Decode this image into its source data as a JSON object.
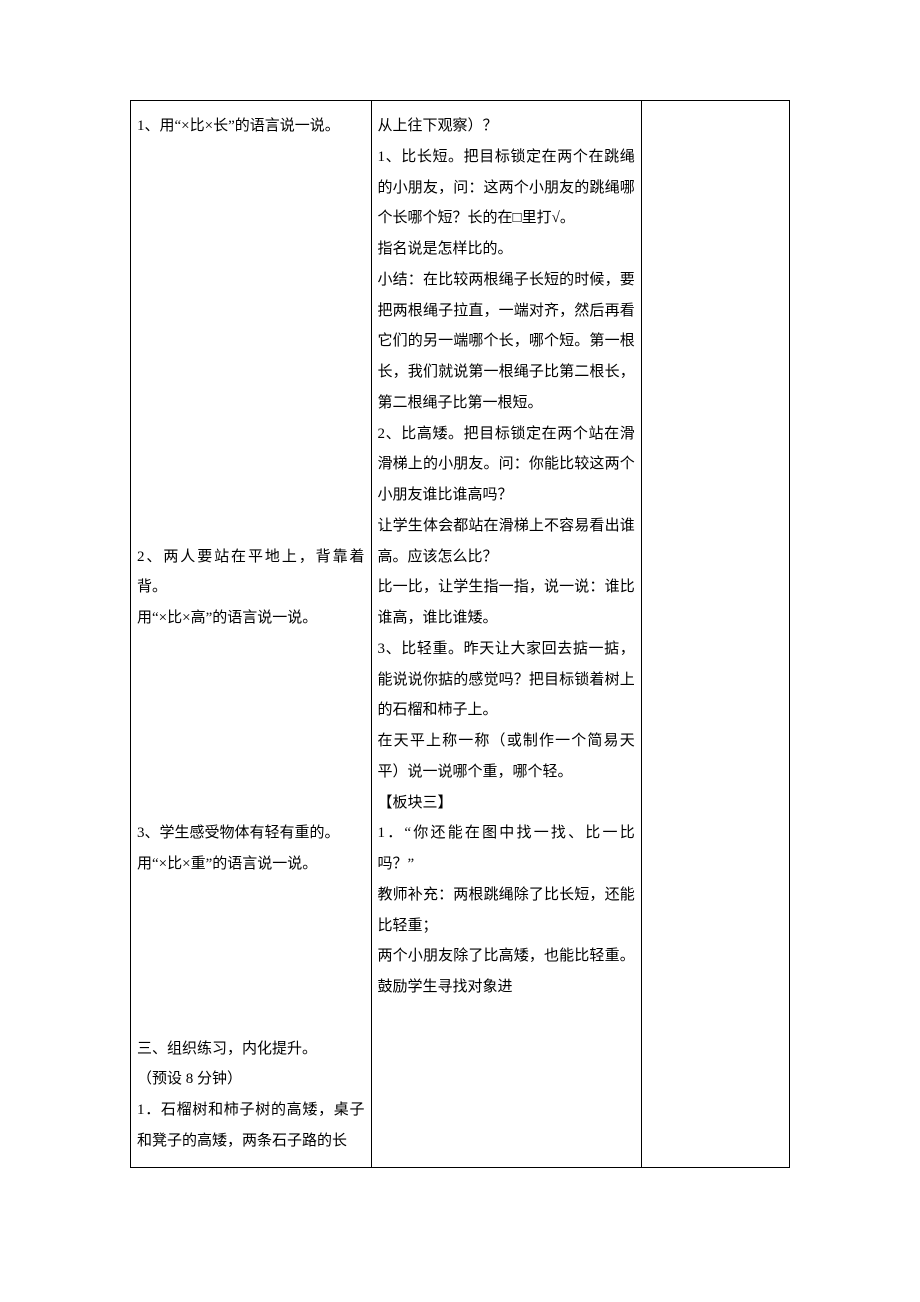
{
  "table": {
    "border_color": "#000000",
    "background_color": "#ffffff",
    "font_family": "SimSun",
    "font_size_pt": 11,
    "line_height": 2.05,
    "columns": [
      {
        "width_pct": 36.5
      },
      {
        "width_pct": 41.0
      },
      {
        "width_pct": 22.5
      }
    ],
    "col1": {
      "p1": "1、用“×比×长”的语言说一说。",
      "p2": "2、两人要站在平地上，背靠着背。",
      "p3": "用“×比×高”的语言说一说。",
      "p4": "3、学生感受物体有轻有重的。",
      "p5": "用“×比×重”的语言说一说。",
      "p6": "三、组织练习，内化提升。",
      "p7": "（预设 8 分钟）",
      "p8": "1．石榴树和柿子树的高矮，桌子和凳子的高矮，两条石子路的长"
    },
    "col2": {
      "p1": "从上往下观察）？",
      "p2": "1、比长短。把目标锁定在两个在跳绳的小朋友，问：这两个小朋友的跳绳哪个长哪个短？长的在□里打√。",
      "p3": "指名说是怎样比的。",
      "p4": "小结：在比较两根绳子长短的时候，要把两根绳子拉直，一端对齐，然后再看它们的另一端哪个长，哪个短。第一根长，我们就说第一根绳子比第二根长，第二根绳子比第一根短。",
      "p5": "2、比高矮。把目标锁定在两个站在滑滑梯上的小朋友。问：你能比较这两个小朋友谁比谁高吗？",
      "p6": "让学生体会都站在滑梯上不容易看出谁高。应该怎么比？",
      "p7": "比一比，让学生指一指，说一说：谁比谁高，谁比谁矮。",
      "p8": "3、比轻重。昨天让大家回去掂一掂，能说说你掂的感觉吗？把目标锁着树上的石榴和柿子上。",
      "p9": "在天平上称一称（或制作一个简易天平）说一说哪个重，哪个轻。",
      "p10": "【板块三】",
      "p11": "1．“你还能在图中找一找、比一比吗？”",
      "p12": "教师补充：两根跳绳除了比长短，还能比轻重；",
      "p13": "两个小朋友除了比高矮，也能比轻重。鼓励学生寻找对象进"
    },
    "col3": {
      "text": ""
    }
  }
}
